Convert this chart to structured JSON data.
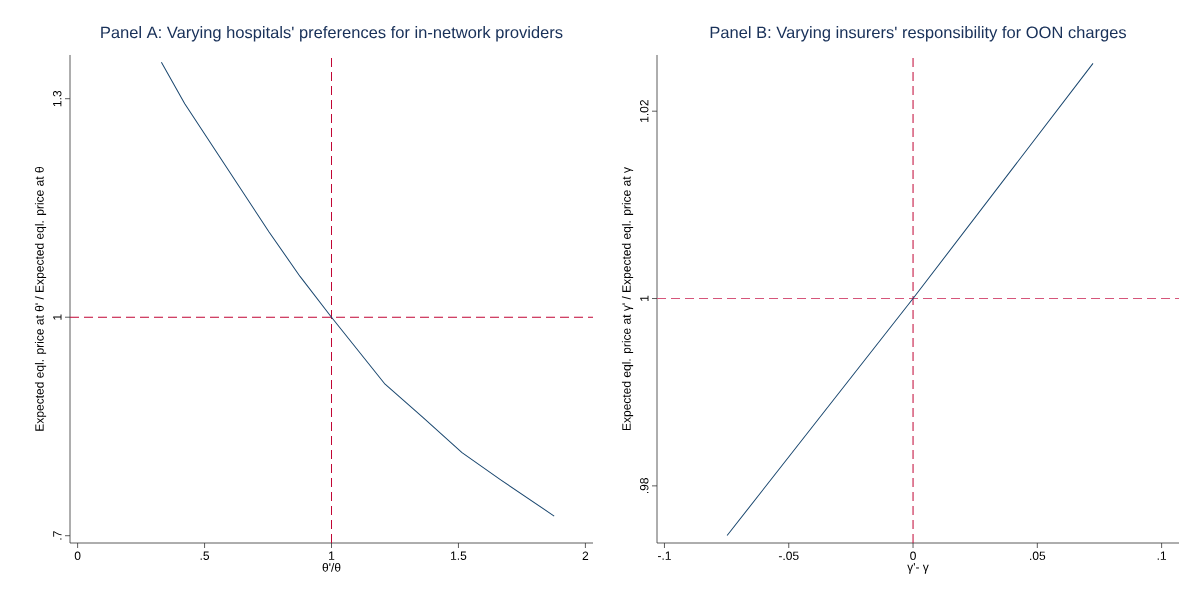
{
  "chart_data": [
    {
      "type": "line",
      "title": "Panel A: Varying hospitals' preferences for in-network providers",
      "xlabel": "θ'/θ",
      "ylabel": "Expected eql. price at θ' / Expected eql. price at θ",
      "series": [
        {
          "color": "#1a476f",
          "x": [
            0.33,
            0.422,
            0.556,
            0.754,
            0.876,
            1.0,
            1.211,
            1.361,
            1.514,
            1.665,
            1.877
          ],
          "values": [
            1.35,
            1.293,
            1.222,
            1.117,
            1.056,
            1.0,
            0.908,
            0.862,
            0.814,
            0.777,
            0.727
          ]
        }
      ],
      "xlim": [
        -0.03,
        2.03
      ],
      "ylim": [
        0.69,
        1.36
      ],
      "xticks": [
        0,
        {
          "value": 0.5,
          "label": ".5"
        },
        1,
        1.5,
        2
      ],
      "yticks": [
        {
          "value": 0.7,
          "label": ".7"
        },
        1,
        1.3
      ],
      "ref_lines": [
        {
          "axis": "y",
          "value": 1,
          "color": "#c10534",
          "line_style": "dashed"
        },
        {
          "axis": "x",
          "value": 1,
          "color": "#c10534",
          "line_style": "dashed"
        }
      ]
    },
    {
      "type": "line",
      "title": "Panel B: Varying insurers' responsibility for OON charges",
      "xlabel": "γ'- γ",
      "ylabel": "Expected eql. price at γ' / Expected eql. price at γ",
      "series": [
        {
          "color": "#1a476f",
          "x": [
            -0.0748,
            0.0,
            0.0724
          ],
          "values": [
            0.9747,
            1.0,
            1.0251
          ]
        }
      ],
      "xlim": [
        -0.103,
        0.107
      ],
      "ylim": [
        0.9739,
        1.026
      ],
      "xticks": [
        {
          "value": -0.1,
          "label": "-.1"
        },
        {
          "value": -0.05,
          "label": "-.05"
        },
        0,
        {
          "value": 0.05,
          "label": ".05"
        },
        {
          "value": 0.1,
          "label": ".1"
        }
      ],
      "yticks": [
        {
          "value": 0.98,
          "label": ".98"
        },
        1,
        1.02
      ],
      "ref_lines": [
        {
          "axis": "y",
          "value": 1,
          "color": "#d6557a",
          "line_style": "dashed"
        },
        {
          "axis": "x",
          "value": 0,
          "color": "#c10534",
          "line_style": "dashed"
        }
      ]
    }
  ]
}
